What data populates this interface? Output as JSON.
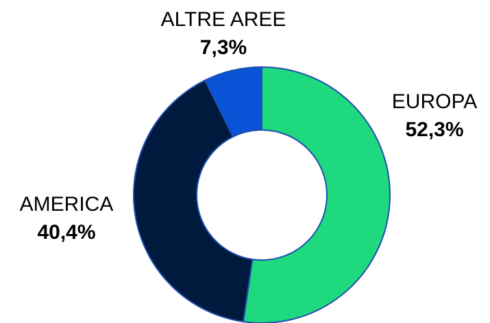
{
  "chart_data": {
    "type": "donut",
    "categories": [
      "EUROPA",
      "AMERICA",
      "ALTRE AREE"
    ],
    "values": [
      52.3,
      40.4,
      7.3
    ],
    "value_labels": [
      "52,3%",
      "40,4%",
      "7,3%"
    ],
    "colors": [
      "#1ed97e",
      "#001a3d",
      "#0a52d6"
    ]
  }
}
